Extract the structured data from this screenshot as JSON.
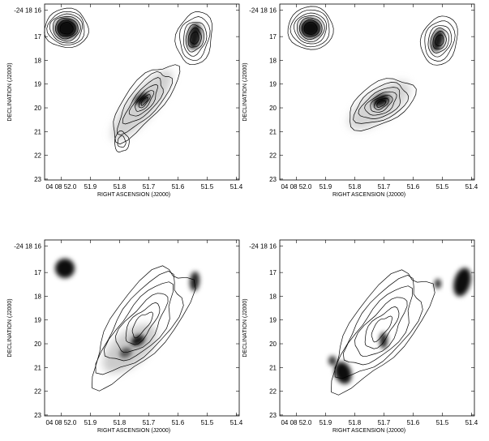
{
  "figure": {
    "panels": [
      {
        "name": "panel-top-left",
        "ylabel": "DECLINATION (J2000)",
        "xlabel": "RIGHT ASCENSION (J2000)",
        "yticks": [
          "-24 18 16",
          "17",
          "18",
          "19",
          "20",
          "21",
          "22",
          "23"
        ],
        "xticks": [
          "04 08 52.0",
          "51.9",
          "51.8",
          "51.7",
          "51.6",
          "51.5",
          "51.4"
        ]
      },
      {
        "name": "panel-top-right",
        "ylabel": "DECLINATION (J2000)",
        "xlabel": "RIGHT ASCENSION (J2000)",
        "yticks": [
          "-24 18 16",
          "17",
          "18",
          "19",
          "20",
          "21",
          "22",
          "23"
        ],
        "xticks": [
          "04 08 52.0",
          "51.9",
          "51.8",
          "51.7",
          "51.6",
          "51.5",
          "51.4"
        ]
      },
      {
        "name": "panel-bottom-left",
        "ylabel": "DECLINATION (J2000)",
        "xlabel": "RIGHT ASCENSION (J2000)",
        "yticks": [
          "-24 18 16",
          "17",
          "18",
          "19",
          "20",
          "21",
          "22",
          "23"
        ],
        "xticks": [
          "04 08 52.0",
          "51.9",
          "51.8",
          "51.7",
          "51.6",
          "51.5",
          "51.4"
        ]
      },
      {
        "name": "panel-bottom-right",
        "ylabel": "DECLINATION (J2000)",
        "xlabel": "RIGHT ASCENSION (J2000)",
        "yticks": [
          "-24 18 16",
          "17",
          "18",
          "19",
          "20",
          "21",
          "22",
          "23"
        ],
        "xticks": [
          "04 08 52.0",
          "51.9",
          "51.8",
          "51.7",
          "51.6",
          "51.5",
          "51.4"
        ]
      }
    ]
  }
}
